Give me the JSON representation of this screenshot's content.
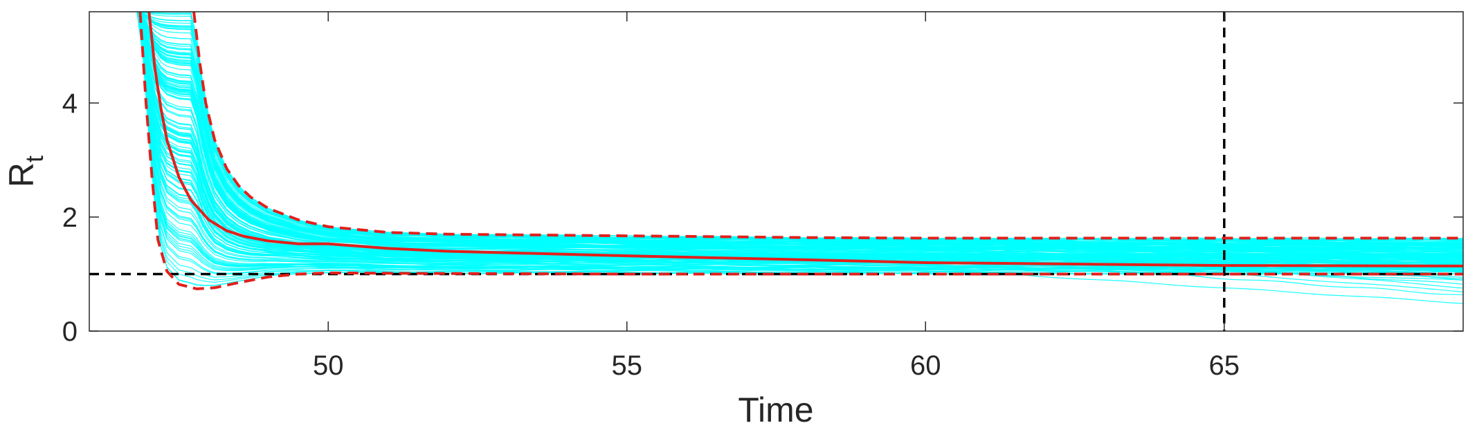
{
  "chart_data": {
    "type": "line",
    "xlabel": "Time",
    "ylabel": {
      "main": "R",
      "sub": "t"
    },
    "xlim": [
      46,
      69
    ],
    "ylim": [
      0,
      5.6
    ],
    "xticks": [
      50,
      55,
      60,
      65
    ],
    "yticks": [
      0,
      2,
      4
    ],
    "grid": false,
    "colors": {
      "ensemble": "#00ffff",
      "mean": "#e0211d",
      "bounds": "#e0211d",
      "reference": "#000000"
    },
    "reference_lines": [
      {
        "orientation": "horizontal",
        "value": 1.0,
        "style": "dashed"
      },
      {
        "orientation": "vertical",
        "value": 65,
        "style": "dashed"
      }
    ],
    "series": [
      {
        "style": "solid",
        "x": [
          47.0,
          47.1,
          47.2,
          47.3,
          47.5,
          47.7,
          48.0,
          48.3,
          48.6,
          49.0,
          49.5,
          50.0,
          51.0,
          52.0,
          55.0,
          58.0,
          60.0,
          62.0,
          65.0,
          69.0
        ],
        "y": [
          5.6,
          4.6,
          3.9,
          3.35,
          2.7,
          2.3,
          1.95,
          1.76,
          1.66,
          1.58,
          1.53,
          1.53,
          1.45,
          1.4,
          1.32,
          1.25,
          1.2,
          1.18,
          1.15,
          1.14
        ]
      },
      {
        "style": "dashed",
        "x": [
          47.75,
          47.85,
          47.95,
          48.1,
          48.3,
          48.5,
          48.7,
          49.0,
          49.5,
          50.0,
          51.0,
          52.0,
          55.0,
          58.0,
          60.0,
          62.0,
          65.0,
          69.0
        ],
        "y": [
          5.6,
          4.7,
          4.0,
          3.35,
          2.85,
          2.55,
          2.35,
          2.15,
          1.95,
          1.83,
          1.73,
          1.7,
          1.67,
          1.64,
          1.63,
          1.63,
          1.63,
          1.63
        ]
      },
      {
        "style": "dashed",
        "x": [
          46.85,
          46.95,
          47.05,
          47.15,
          47.3,
          47.5,
          47.8,
          48.1,
          48.5,
          49.0,
          49.5,
          50.0,
          52.0,
          55.0,
          60.0,
          65.0,
          69.0
        ],
        "y": [
          5.6,
          4.0,
          2.7,
          1.6,
          1.05,
          0.82,
          0.74,
          0.76,
          0.85,
          0.95,
          1.0,
          1.02,
          1.01,
          1.0,
          1.0,
          1.0,
          1.0
        ]
      }
    ]
  }
}
